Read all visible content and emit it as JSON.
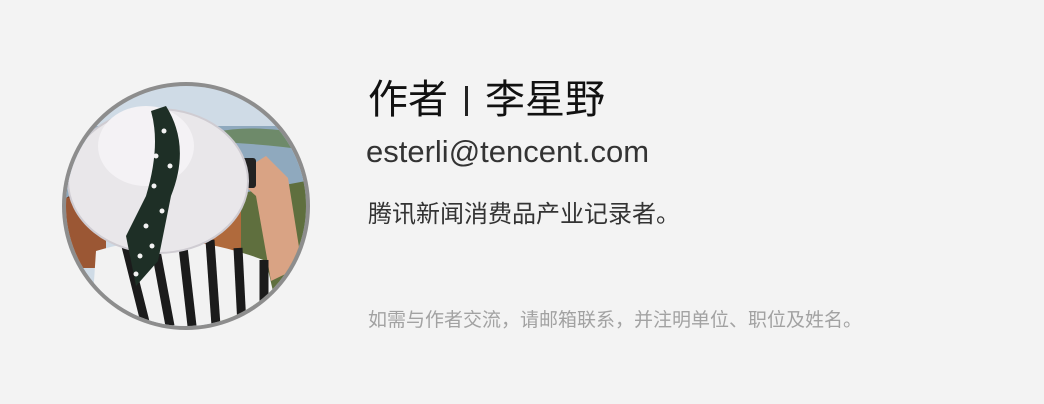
{
  "author": {
    "label": "作者",
    "name": "李星野",
    "email": "esterli@tencent.com",
    "bio": "腾讯新闻消费品产业记录者。"
  },
  "contact_note": "如需与作者交流，请邮箱联系，并注明单位、职位及姓名。",
  "colors": {
    "background": "#f3f3f3",
    "ring": "#8d8d8d",
    "primary_text": "#111111",
    "muted_text": "#a2a2a2"
  }
}
